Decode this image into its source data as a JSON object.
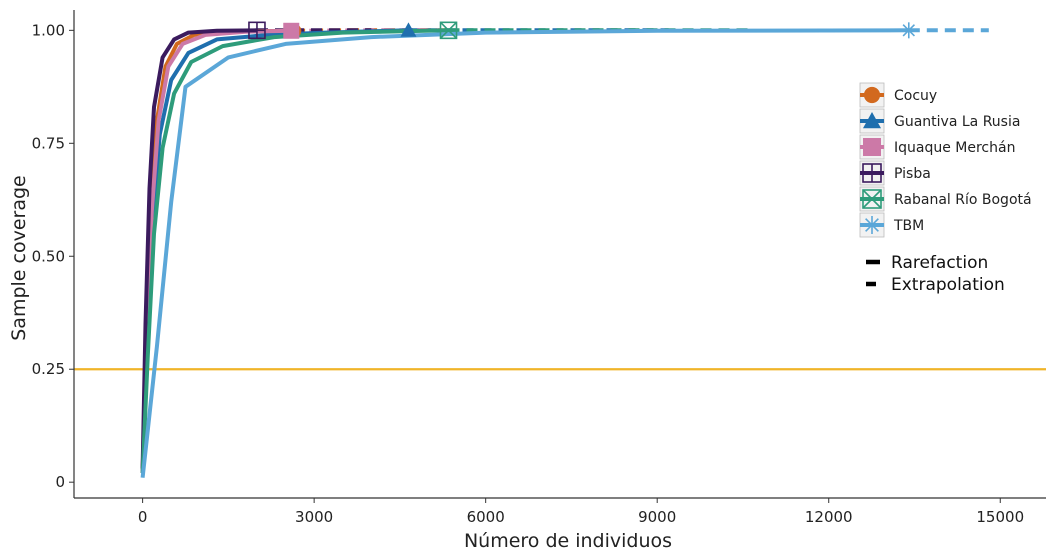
{
  "chart_data": {
    "type": "line",
    "title": "",
    "xlabel": "Número de individuos",
    "ylabel": "Sample coverage",
    "xlim": [
      -1200,
      15800
    ],
    "ylim": [
      -0.035,
      1.045
    ],
    "xticks": [
      0,
      3000,
      6000,
      9000,
      12000,
      15000
    ],
    "xtick_labels": [
      "0",
      "3000",
      "6000",
      "9000",
      "12000",
      "15000"
    ],
    "yticks": [
      0,
      0.25,
      0.5,
      0.75,
      1.0
    ],
    "ytick_labels": [
      "0",
      "0.25",
      "0.50",
      "0.75",
      "1.00"
    ],
    "grid": false,
    "legend_position": "right",
    "reference_line": {
      "y": 0.25,
      "color": "#F0B429"
    },
    "series": [
      {
        "name": "Cocuy",
        "color": "#D2691E",
        "marker": "circle",
        "observed": {
          "x": 2650,
          "y": 0.999
        },
        "rarefaction": [
          [
            0,
            0.02
          ],
          [
            60,
            0.3
          ],
          [
            150,
            0.6
          ],
          [
            250,
            0.8
          ],
          [
            400,
            0.92
          ],
          [
            600,
            0.97
          ],
          [
            900,
            0.99
          ],
          [
            1300,
            0.996
          ],
          [
            2000,
            0.998
          ],
          [
            2650,
            0.999
          ]
        ],
        "extrapolation": [
          [
            2650,
            0.999
          ],
          [
            3500,
            1.0
          ],
          [
            5300,
            1.0
          ]
        ]
      },
      {
        "name": "Guantiva La Rusia",
        "color": "#1F6FAE",
        "marker": "triangle",
        "observed": {
          "x": 4650,
          "y": 1.0
        },
        "rarefaction": [
          [
            0,
            0.02
          ],
          [
            80,
            0.3
          ],
          [
            180,
            0.58
          ],
          [
            300,
            0.77
          ],
          [
            500,
            0.89
          ],
          [
            800,
            0.95
          ],
          [
            1300,
            0.98
          ],
          [
            2200,
            0.99
          ],
          [
            3200,
            0.995
          ],
          [
            4650,
            1.0
          ]
        ],
        "extrapolation": [
          [
            4650,
            1.0
          ],
          [
            6500,
            1.0
          ],
          [
            9200,
            1.0
          ]
        ]
      },
      {
        "name": "Iquaque Merchán",
        "color": "#CC79A7",
        "marker": "square",
        "observed": {
          "x": 2600,
          "y": 0.999
        },
        "rarefaction": [
          [
            0,
            0.02
          ],
          [
            70,
            0.3
          ],
          [
            160,
            0.6
          ],
          [
            280,
            0.8
          ],
          [
            450,
            0.92
          ],
          [
            700,
            0.97
          ],
          [
            1100,
            0.99
          ],
          [
            1800,
            0.997
          ],
          [
            2600,
            0.999
          ]
        ],
        "extrapolation": [
          [
            2600,
            0.999
          ],
          [
            4000,
            1.0
          ],
          [
            5200,
            1.0
          ]
        ]
      },
      {
        "name": "Pisba",
        "color": "#3B1B5E",
        "marker": "square-plus",
        "observed": {
          "x": 2000,
          "y": 1.0
        },
        "rarefaction": [
          [
            0,
            0.03
          ],
          [
            50,
            0.35
          ],
          [
            120,
            0.65
          ],
          [
            200,
            0.83
          ],
          [
            350,
            0.94
          ],
          [
            550,
            0.98
          ],
          [
            800,
            0.995
          ],
          [
            1300,
            0.999
          ],
          [
            2000,
            1.0
          ]
        ],
        "extrapolation": [
          [
            2000,
            1.0
          ],
          [
            3000,
            1.0
          ],
          [
            4000,
            1.0
          ]
        ]
      },
      {
        "name": "Rabanal Río Bogotá",
        "color": "#2E9C7B",
        "marker": "square-x",
        "observed": {
          "x": 5350,
          "y": 1.0
        },
        "rarefaction": [
          [
            0,
            0.02
          ],
          [
            90,
            0.28
          ],
          [
            200,
            0.55
          ],
          [
            350,
            0.74
          ],
          [
            550,
            0.86
          ],
          [
            850,
            0.93
          ],
          [
            1400,
            0.965
          ],
          [
            2300,
            0.985
          ],
          [
            3500,
            0.995
          ],
          [
            5350,
            1.0
          ]
        ],
        "extrapolation": [
          [
            5350,
            1.0
          ],
          [
            8000,
            1.0
          ],
          [
            10700,
            1.0
          ]
        ]
      },
      {
        "name": "TBM",
        "color": "#5BA7D8",
        "marker": "asterisk",
        "observed": {
          "x": 13400,
          "y": 1.0
        },
        "rarefaction": [
          [
            0,
            0.01
          ],
          [
            250,
            0.3
          ],
          [
            500,
            0.62
          ],
          [
            750,
            0.875
          ],
          [
            1500,
            0.94
          ],
          [
            2500,
            0.97
          ],
          [
            4000,
            0.985
          ],
          [
            6000,
            0.995
          ],
          [
            9000,
            0.999
          ],
          [
            13400,
            1.0
          ]
        ],
        "extrapolation": [
          [
            13400,
            1.0
          ],
          [
            14100,
            1.0
          ],
          [
            14800,
            1.0
          ]
        ]
      }
    ],
    "line_type_legend": [
      {
        "label": "Rarefaction",
        "style": "solid"
      },
      {
        "label": "Extrapolation",
        "style": "dashed"
      }
    ]
  }
}
